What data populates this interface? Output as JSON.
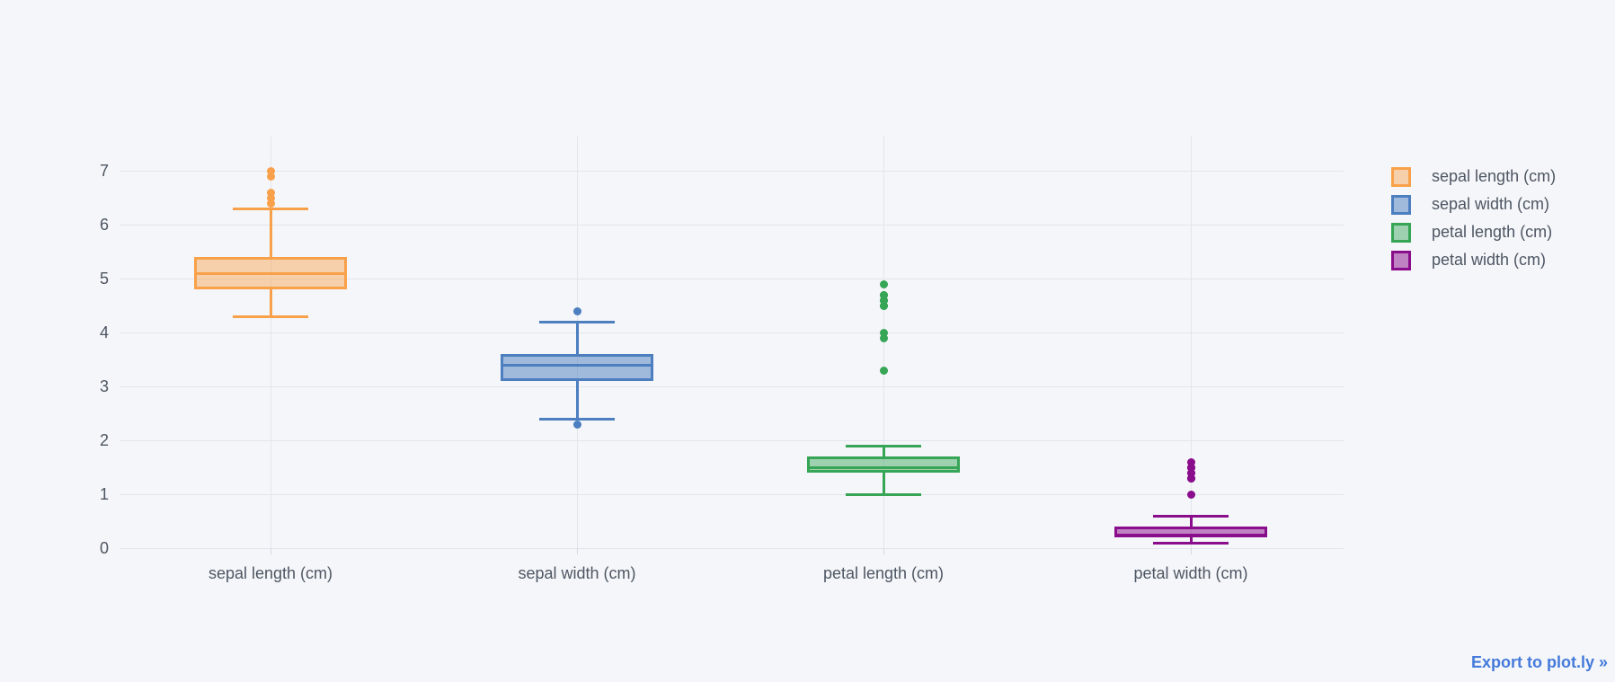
{
  "page": {
    "background_color": "#f5f6f9",
    "grid_color": "#e2e5ed",
    "text_color": "#4d5663"
  },
  "export_link": {
    "label": "Export to plot.ly »",
    "color": "#447adb"
  },
  "chart_data": {
    "type": "box",
    "orientation": "vertical",
    "title": "",
    "xlabel": "",
    "ylabel": "",
    "grid": true,
    "legend_position": "top-right",
    "ylim": [
      -0.35,
      7.65
    ],
    "yticks": [
      0,
      1,
      2,
      3,
      4,
      5,
      6,
      7
    ],
    "categories": [
      "sepal length (cm)",
      "sepal width (cm)",
      "petal length (cm)",
      "petal width (cm)"
    ],
    "series": [
      {
        "name": "sepal length (cm)",
        "color": "#f9a14a",
        "fill": "rgba(249,161,74,0.45)",
        "whisker_low": 4.3,
        "q1": 4.8,
        "median": 5.1,
        "q3": 5.4,
        "whisker_high": 6.3,
        "outliers": [
          6.4,
          6.5,
          6.6,
          6.9,
          7.0
        ]
      },
      {
        "name": "sepal width (cm)",
        "color": "#4c7ec0",
        "fill": "rgba(76,126,192,0.5)",
        "whisker_low": 2.4,
        "q1": 3.1,
        "median": 3.4,
        "q3": 3.6,
        "whisker_high": 4.2,
        "outliers": [
          2.3,
          4.4
        ]
      },
      {
        "name": "petal length (cm)",
        "color": "#36a555",
        "fill": "rgba(54,165,85,0.45)",
        "whisker_low": 1.0,
        "q1": 1.4,
        "median": 1.5,
        "q3": 1.7,
        "whisker_high": 1.9,
        "outliers": [
          3.3,
          3.9,
          4.0,
          4.5,
          4.5,
          4.6,
          4.6,
          4.7,
          4.7,
          4.9
        ]
      },
      {
        "name": "petal width (cm)",
        "color": "#8a0e8c",
        "fill": "rgba(138,14,140,0.5)",
        "whisker_low": 0.1,
        "q1": 0.2,
        "median": 0.25,
        "q3": 0.4,
        "whisker_high": 0.6,
        "outliers": [
          1.0,
          1.3,
          1.3,
          1.3,
          1.4,
          1.4,
          1.5,
          1.5,
          1.5,
          1.6
        ]
      }
    ]
  }
}
